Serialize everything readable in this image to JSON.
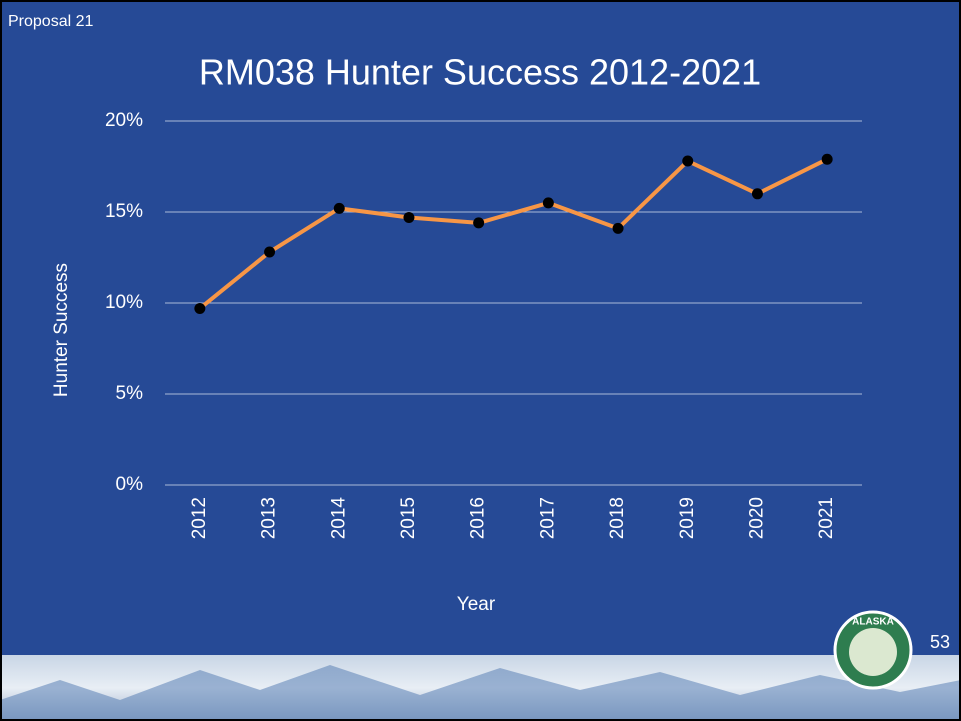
{
  "header": "Proposal 21",
  "page_number": "53",
  "logo_text": "ALASKA",
  "chart_data": {
    "type": "line",
    "title": "RM038 Hunter Success 2012-2021",
    "x_label": "Year",
    "y_label": "Hunter Success",
    "categories": [
      "2012",
      "2013",
      "2014",
      "2015",
      "2016",
      "2017",
      "2018",
      "2019",
      "2020",
      "2021"
    ],
    "series": [
      {
        "name": "Hunter Success",
        "color": "#f79646",
        "marker_color": "#000000",
        "values": [
          9.7,
          12.8,
          15.2,
          14.7,
          14.4,
          15.5,
          14.1,
          17.8,
          16.0,
          17.9
        ]
      }
    ],
    "ylim": [
      0,
      20
    ],
    "yticks": [
      {
        "value": 0,
        "label": "0%"
      },
      {
        "value": 5,
        "label": "5%"
      },
      {
        "value": 10,
        "label": "10%"
      },
      {
        "value": 15,
        "label": "15%"
      },
      {
        "value": 20,
        "label": "20%"
      }
    ],
    "grid": true
  }
}
